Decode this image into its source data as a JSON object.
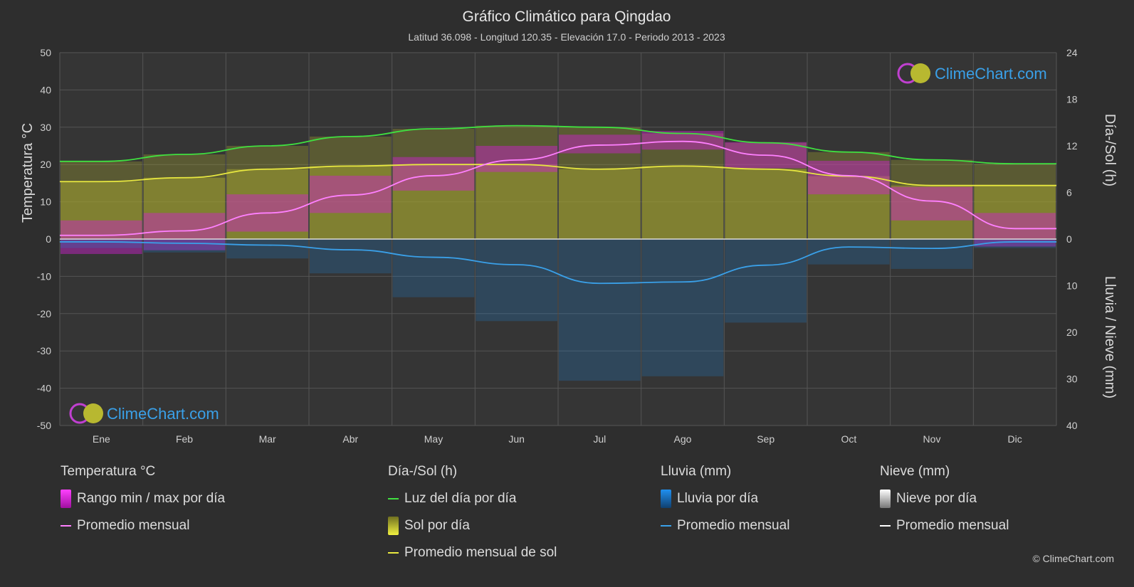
{
  "header": {
    "title": "Gráfico Climático para Qingdao",
    "subtitle": "Latitud 36.098 - Longitud 120.35 - Elevación 17.0 - Periodo 2013 - 2023"
  },
  "logo": {
    "text": "ClimeChart.com"
  },
  "credit": "© ClimeChart.com",
  "legend": {
    "temperature": {
      "title": "Temperatura °C",
      "range": "Rango min / max por día",
      "avg": "Promedio mensual"
    },
    "sun": {
      "title": "Día-/Sol (h)",
      "daylight": "Luz del día por día",
      "sun_day": "Sol por día",
      "sun_avg": "Promedio mensual de sol"
    },
    "rain": {
      "title": "Lluvia (mm)",
      "rain_day": "Lluvia por día",
      "avg": "Promedio mensual"
    },
    "snow": {
      "title": "Nieve (mm)",
      "snow_day": "Nieve por día",
      "avg": "Promedio mensual"
    }
  },
  "colors": {
    "temperature_range": "#d020d0",
    "temperature_avg": "#ff80ff",
    "daylight": "#40e040",
    "sun_fill": "#a0a030",
    "sun_avg": "#e8e840",
    "rain": "#2080d0",
    "rain_avg": "#3aa0e8",
    "snow": "#cccccc",
    "snow_avg": "#ffffff"
  },
  "chart_data": {
    "type": "line",
    "categories": [
      "Ene",
      "Feb",
      "Mar",
      "Abr",
      "May",
      "Jun",
      "Jul",
      "Ago",
      "Sep",
      "Oct",
      "Nov",
      "Dic"
    ],
    "y_left": {
      "label": "Temperatura °C",
      "range": [
        -50,
        50
      ],
      "ticks": [
        50,
        40,
        30,
        20,
        10,
        0,
        -10,
        -20,
        -30,
        -40,
        -50
      ]
    },
    "y_right_top": {
      "label": "Día-/Sol (h)",
      "range": [
        0,
        24
      ],
      "ticks": [
        24,
        18,
        12,
        6,
        0
      ]
    },
    "y_right_bottom": {
      "label": "Lluvia / Nieve (mm)",
      "range": [
        0,
        40
      ],
      "ticks": [
        0,
        10,
        20,
        30,
        40
      ]
    },
    "series": [
      {
        "name": "Promedio mensual",
        "unit": "°C",
        "values": [
          1.0,
          2.2,
          7.0,
          11.8,
          17.0,
          21.2,
          25.2,
          26.2,
          22.5,
          17.0,
          10.2,
          2.8
        ]
      },
      {
        "name": "Luz del día por día",
        "unit": "h",
        "values": [
          10.0,
          10.9,
          12.0,
          13.2,
          14.2,
          14.6,
          14.4,
          13.6,
          12.4,
          11.2,
          10.2,
          9.7
        ]
      },
      {
        "name": "Promedio mensual de sol",
        "unit": "h",
        "values": [
          7.4,
          7.9,
          9.0,
          9.4,
          9.6,
          9.6,
          9.0,
          9.4,
          9.0,
          8.1,
          6.9,
          6.9
        ]
      },
      {
        "name": "Promedio mensual",
        "unit": "mm",
        "values": [
          0.6,
          0.9,
          1.3,
          2.3,
          3.9,
          5.5,
          9.5,
          9.2,
          5.6,
          1.7,
          2.0,
          0.6
        ]
      }
    ],
    "temp_daily_range": {
      "min": [
        -4,
        -3,
        2,
        7,
        13,
        18,
        23,
        24,
        19,
        12,
        5,
        -2
      ],
      "max": [
        5,
        7,
        12,
        17,
        22,
        25,
        28,
        29,
        26,
        21,
        14,
        7
      ]
    },
    "grid": true
  }
}
